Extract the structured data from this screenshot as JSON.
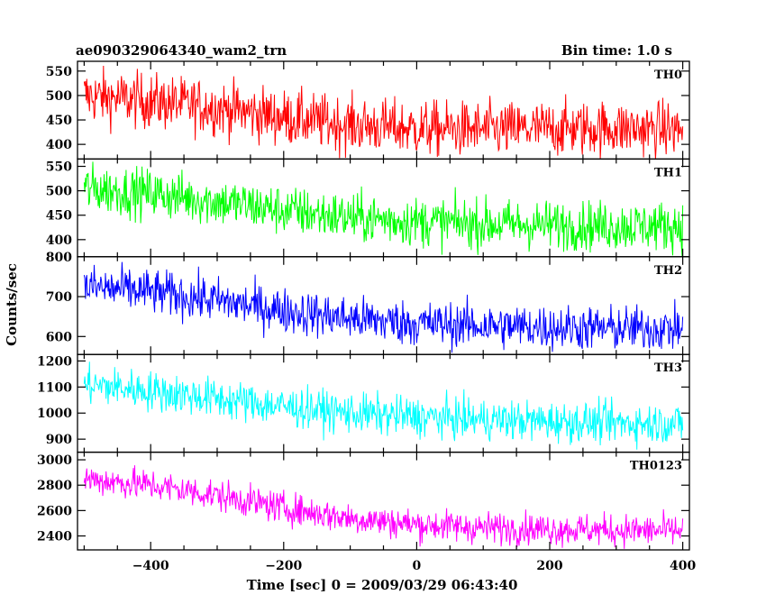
{
  "chart_data": {
    "type": "line",
    "title": "ae090329064340_wam2_trn",
    "subtitle": "Bin time: 1.0 s",
    "xlabel": "Time [sec] 0 = 2009/03/29 06:43:40",
    "ylabel": "Counts/sec",
    "xlim": [
      -510,
      410
    ],
    "xticks": [
      -400,
      -200,
      0,
      200,
      400
    ],
    "x_start": -500,
    "x_end": 400,
    "bin_time": 1.0,
    "series": [
      {
        "name": "TH0",
        "color": "#ff0000",
        "ylim": [
          370,
          570
        ],
        "yticks": [
          400,
          450,
          500,
          550
        ],
        "trend": [
          [
            -500,
            500
          ],
          [
            -400,
            488
          ],
          [
            -300,
            475
          ],
          [
            -200,
            455
          ],
          [
            -100,
            440
          ],
          [
            0,
            432
          ],
          [
            100,
            430
          ],
          [
            200,
            432
          ],
          [
            300,
            433
          ],
          [
            400,
            430
          ]
        ],
        "noise_sd": 28
      },
      {
        "name": "TH1",
        "color": "#00ff00",
        "ylim": [
          365,
          565
        ],
        "yticks": [
          400,
          450,
          500,
          550
        ],
        "trend": [
          [
            -500,
            505
          ],
          [
            -400,
            495
          ],
          [
            -300,
            478
          ],
          [
            -200,
            460
          ],
          [
            -100,
            445
          ],
          [
            0,
            437
          ],
          [
            100,
            432
          ],
          [
            200,
            430
          ],
          [
            300,
            428
          ],
          [
            400,
            428
          ]
        ],
        "noise_sd": 25
      },
      {
        "name": "TH2",
        "color": "#0000ff",
        "ylim": [
          555,
          800
        ],
        "yticks": [
          600,
          700,
          800
        ],
        "trend": [
          [
            -500,
            725
          ],
          [
            -400,
            712
          ],
          [
            -300,
            690
          ],
          [
            -200,
            665
          ],
          [
            -100,
            645
          ],
          [
            0,
            633
          ],
          [
            100,
            627
          ],
          [
            200,
            623
          ],
          [
            300,
            620
          ],
          [
            400,
            620
          ]
        ],
        "noise_sd": 28
      },
      {
        "name": "TH3",
        "color": "#00ffff",
        "ylim": [
          850,
          1225
        ],
        "yticks": [
          900,
          1000,
          1100,
          1200
        ],
        "trend": [
          [
            -500,
            1110
          ],
          [
            -400,
            1085
          ],
          [
            -300,
            1055
          ],
          [
            -200,
            1025
          ],
          [
            -100,
            1000
          ],
          [
            0,
            985
          ],
          [
            100,
            975
          ],
          [
            200,
            968
          ],
          [
            300,
            962
          ],
          [
            400,
            960
          ]
        ],
        "noise_sd": 38
      },
      {
        "name": "TH0123",
        "color": "#ff00ff",
        "ylim": [
          2290,
          3060
        ],
        "yticks": [
          2400,
          2600,
          2800,
          3000
        ],
        "trend": [
          [
            -500,
            2850
          ],
          [
            -400,
            2800
          ],
          [
            -300,
            2720
          ],
          [
            -200,
            2620
          ],
          [
            -100,
            2540
          ],
          [
            0,
            2490
          ],
          [
            100,
            2465
          ],
          [
            200,
            2455
          ],
          [
            300,
            2445
          ],
          [
            400,
            2440
          ]
        ],
        "noise_sd": 62
      }
    ]
  }
}
